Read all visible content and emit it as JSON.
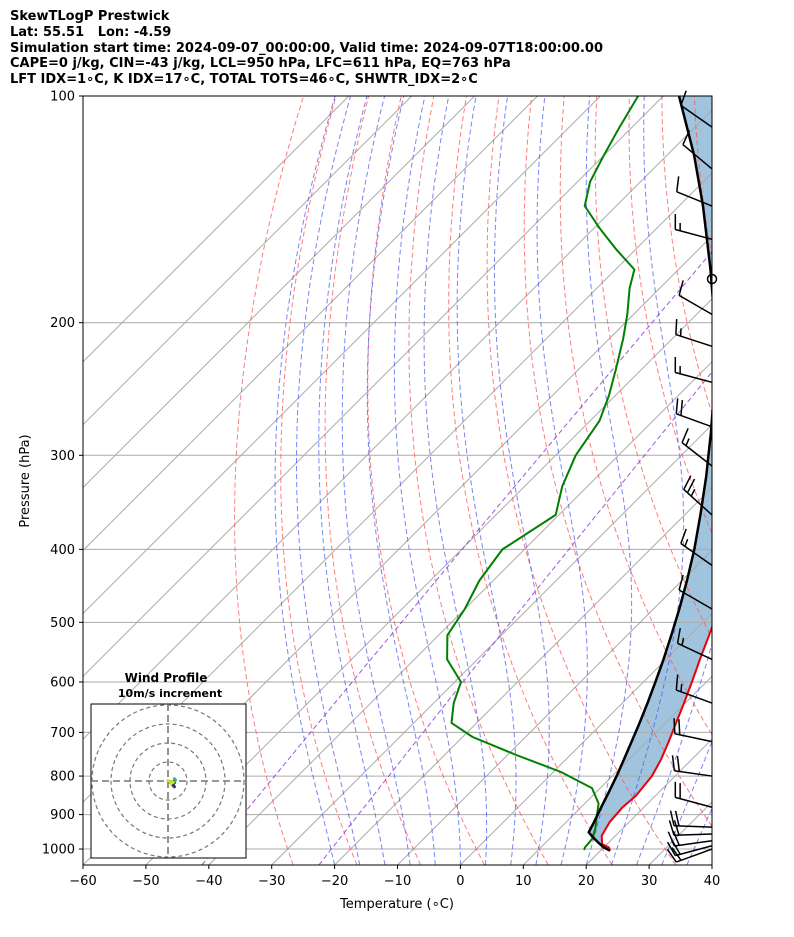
{
  "header": {
    "line1": "SkewTLogP Prestwick",
    "line2": "Lat: 55.51   Lon: -4.59",
    "line3": "Simulation start time: 2024-09-07_00:00:00, Valid time: 2024-09-07T18:00:00.00",
    "line4": "CAPE=0 j/kg, CIN=-43 j/kg, LCL=950 hPa, LFC=611 hPa, EQ=763 hPa",
    "line5": "LFT IDX=1∘C, K IDX=17∘C, TOTAL TOTS=46∘C, SHWTR_IDX=2∘C"
  },
  "inset": {
    "title": "Wind Profile",
    "subtitle": "10m/s increment"
  },
  "chart_data": {
    "type": "line",
    "xlabel": "Temperature (∘C)",
    "ylabel": "Pressure (hPa)",
    "x_ticks": [
      -60,
      -50,
      -40,
      -30,
      -20,
      -10,
      0,
      10,
      20,
      30,
      40
    ],
    "x_tick_labels": [
      "−60",
      "−50",
      "−40",
      "−30",
      "−20",
      "−10",
      "0",
      "10",
      "20",
      "30",
      "40"
    ],
    "y_ticks": [
      100,
      200,
      300,
      400,
      500,
      600,
      700,
      800,
      900,
      1000
    ],
    "y_tick_labels": [
      "100",
      "200",
      "300",
      "400",
      "500",
      "600",
      "700",
      "800",
      "900",
      "1000"
    ],
    "xlim": [
      -60,
      40
    ],
    "ylim": [
      1050,
      100
    ],
    "y_scale": "log",
    "grid": true,
    "colors": {
      "temperature": "#e8000b",
      "dewpoint": "#008000",
      "parcel": "#000000",
      "cape_fill": "#a0c4de",
      "dry_adiabat": "#ff5a5a",
      "moist_adiabat": "#4a5cf0",
      "mixing_ratio": "#8a2bd2",
      "isotherm": "#aaaaaa"
    },
    "series": [
      {
        "key": "temperature",
        "pressure": [
          1005,
          995,
          985,
          960,
          920,
          880,
          850,
          800,
          760,
          720,
          680,
          640,
          600,
          560,
          520,
          480,
          440,
          400,
          370,
          340,
          310,
          290,
          270,
          250,
          240,
          230,
          220,
          210,
          200,
          185,
          170,
          160,
          150,
          140,
          130,
          120,
          110,
          100
        ],
        "temp": [
          21.5,
          20.8,
          19.2,
          17.8,
          16.9,
          16.6,
          16.9,
          16.3,
          15.1,
          13.5,
          11.7,
          9.8,
          7.7,
          5.4,
          3.0,
          0.4,
          -2.6,
          -5.8,
          -8.6,
          -11.8,
          -15.2,
          -17.8,
          -20.6,
          -24.0,
          -25.8,
          -27.8,
          -29.7,
          -32.0,
          -34.5,
          -37.2,
          -38.6,
          -38.5,
          -37.9,
          -37.0,
          -38.2,
          -39.0,
          -40.6,
          -42.5
        ]
      },
      {
        "key": "dewpoint",
        "pressure": [
          1003,
          995,
          970,
          940,
          910,
          870,
          830,
          790,
          750,
          710,
          680,
          640,
          600,
          560,
          520,
          480,
          440,
          400,
          360,
          330,
          300,
          270,
          250,
          230,
          210,
          195,
          180,
          170,
          160,
          150,
          140,
          130,
          120,
          110,
          100
        ],
        "temp": [
          17.3,
          17.0,
          16.8,
          15.7,
          14.2,
          12.2,
          8.7,
          1.2,
          -8.6,
          -18.4,
          -24.0,
          -26.8,
          -29.0,
          -34.8,
          -38.6,
          -40.0,
          -42.2,
          -43.5,
          -40.5,
          -44.0,
          -46.8,
          -48.5,
          -51.0,
          -54.2,
          -57.8,
          -61.0,
          -64.8,
          -67.0,
          -73.0,
          -79.0,
          -85.0,
          -88.0,
          -90.0,
          -92.0,
          -94.0
        ]
      },
      {
        "key": "parcel",
        "pressure": [
          1005,
          995,
          980,
          965,
          950,
          920,
          880,
          840,
          800,
          760,
          720,
          680,
          640,
          600,
          560,
          520,
          480,
          440,
          400,
          360,
          320,
          280,
          240,
          200,
          170,
          140,
          120,
          100
        ],
        "temp": [
          21.5,
          20.0,
          18.3,
          16.7,
          15.2,
          14.4,
          13.2,
          12.0,
          10.7,
          9.2,
          7.6,
          5.9,
          4.0,
          1.9,
          -0.4,
          -3.0,
          -5.9,
          -9.2,
          -13.0,
          -17.5,
          -22.7,
          -28.9,
          -36.3,
          -45.8,
          -54.9,
          -66.2,
          -75.6,
          -87.5
        ]
      }
    ],
    "wind_barbs": {
      "pressure": [
        1000,
        990,
        975,
        955,
        935,
        880,
        800,
        720,
        640,
        560,
        480,
        420,
        360,
        310,
        275,
        240,
        215,
        195,
        175,
        155,
        140,
        125,
        110
      ],
      "direction": [
        250,
        255,
        262,
        268,
        272,
        285,
        278,
        282,
        290,
        295,
        300,
        305,
        312,
        308,
        290,
        285,
        288,
        300,
        0,
        285,
        292,
        310,
        305
      ],
      "speed": [
        20,
        20,
        22,
        20,
        18,
        20,
        18,
        18,
        15,
        16,
        16,
        14,
        25,
        15,
        18,
        17,
        16,
        12,
        0,
        16,
        12,
        12,
        12
      ]
    }
  }
}
